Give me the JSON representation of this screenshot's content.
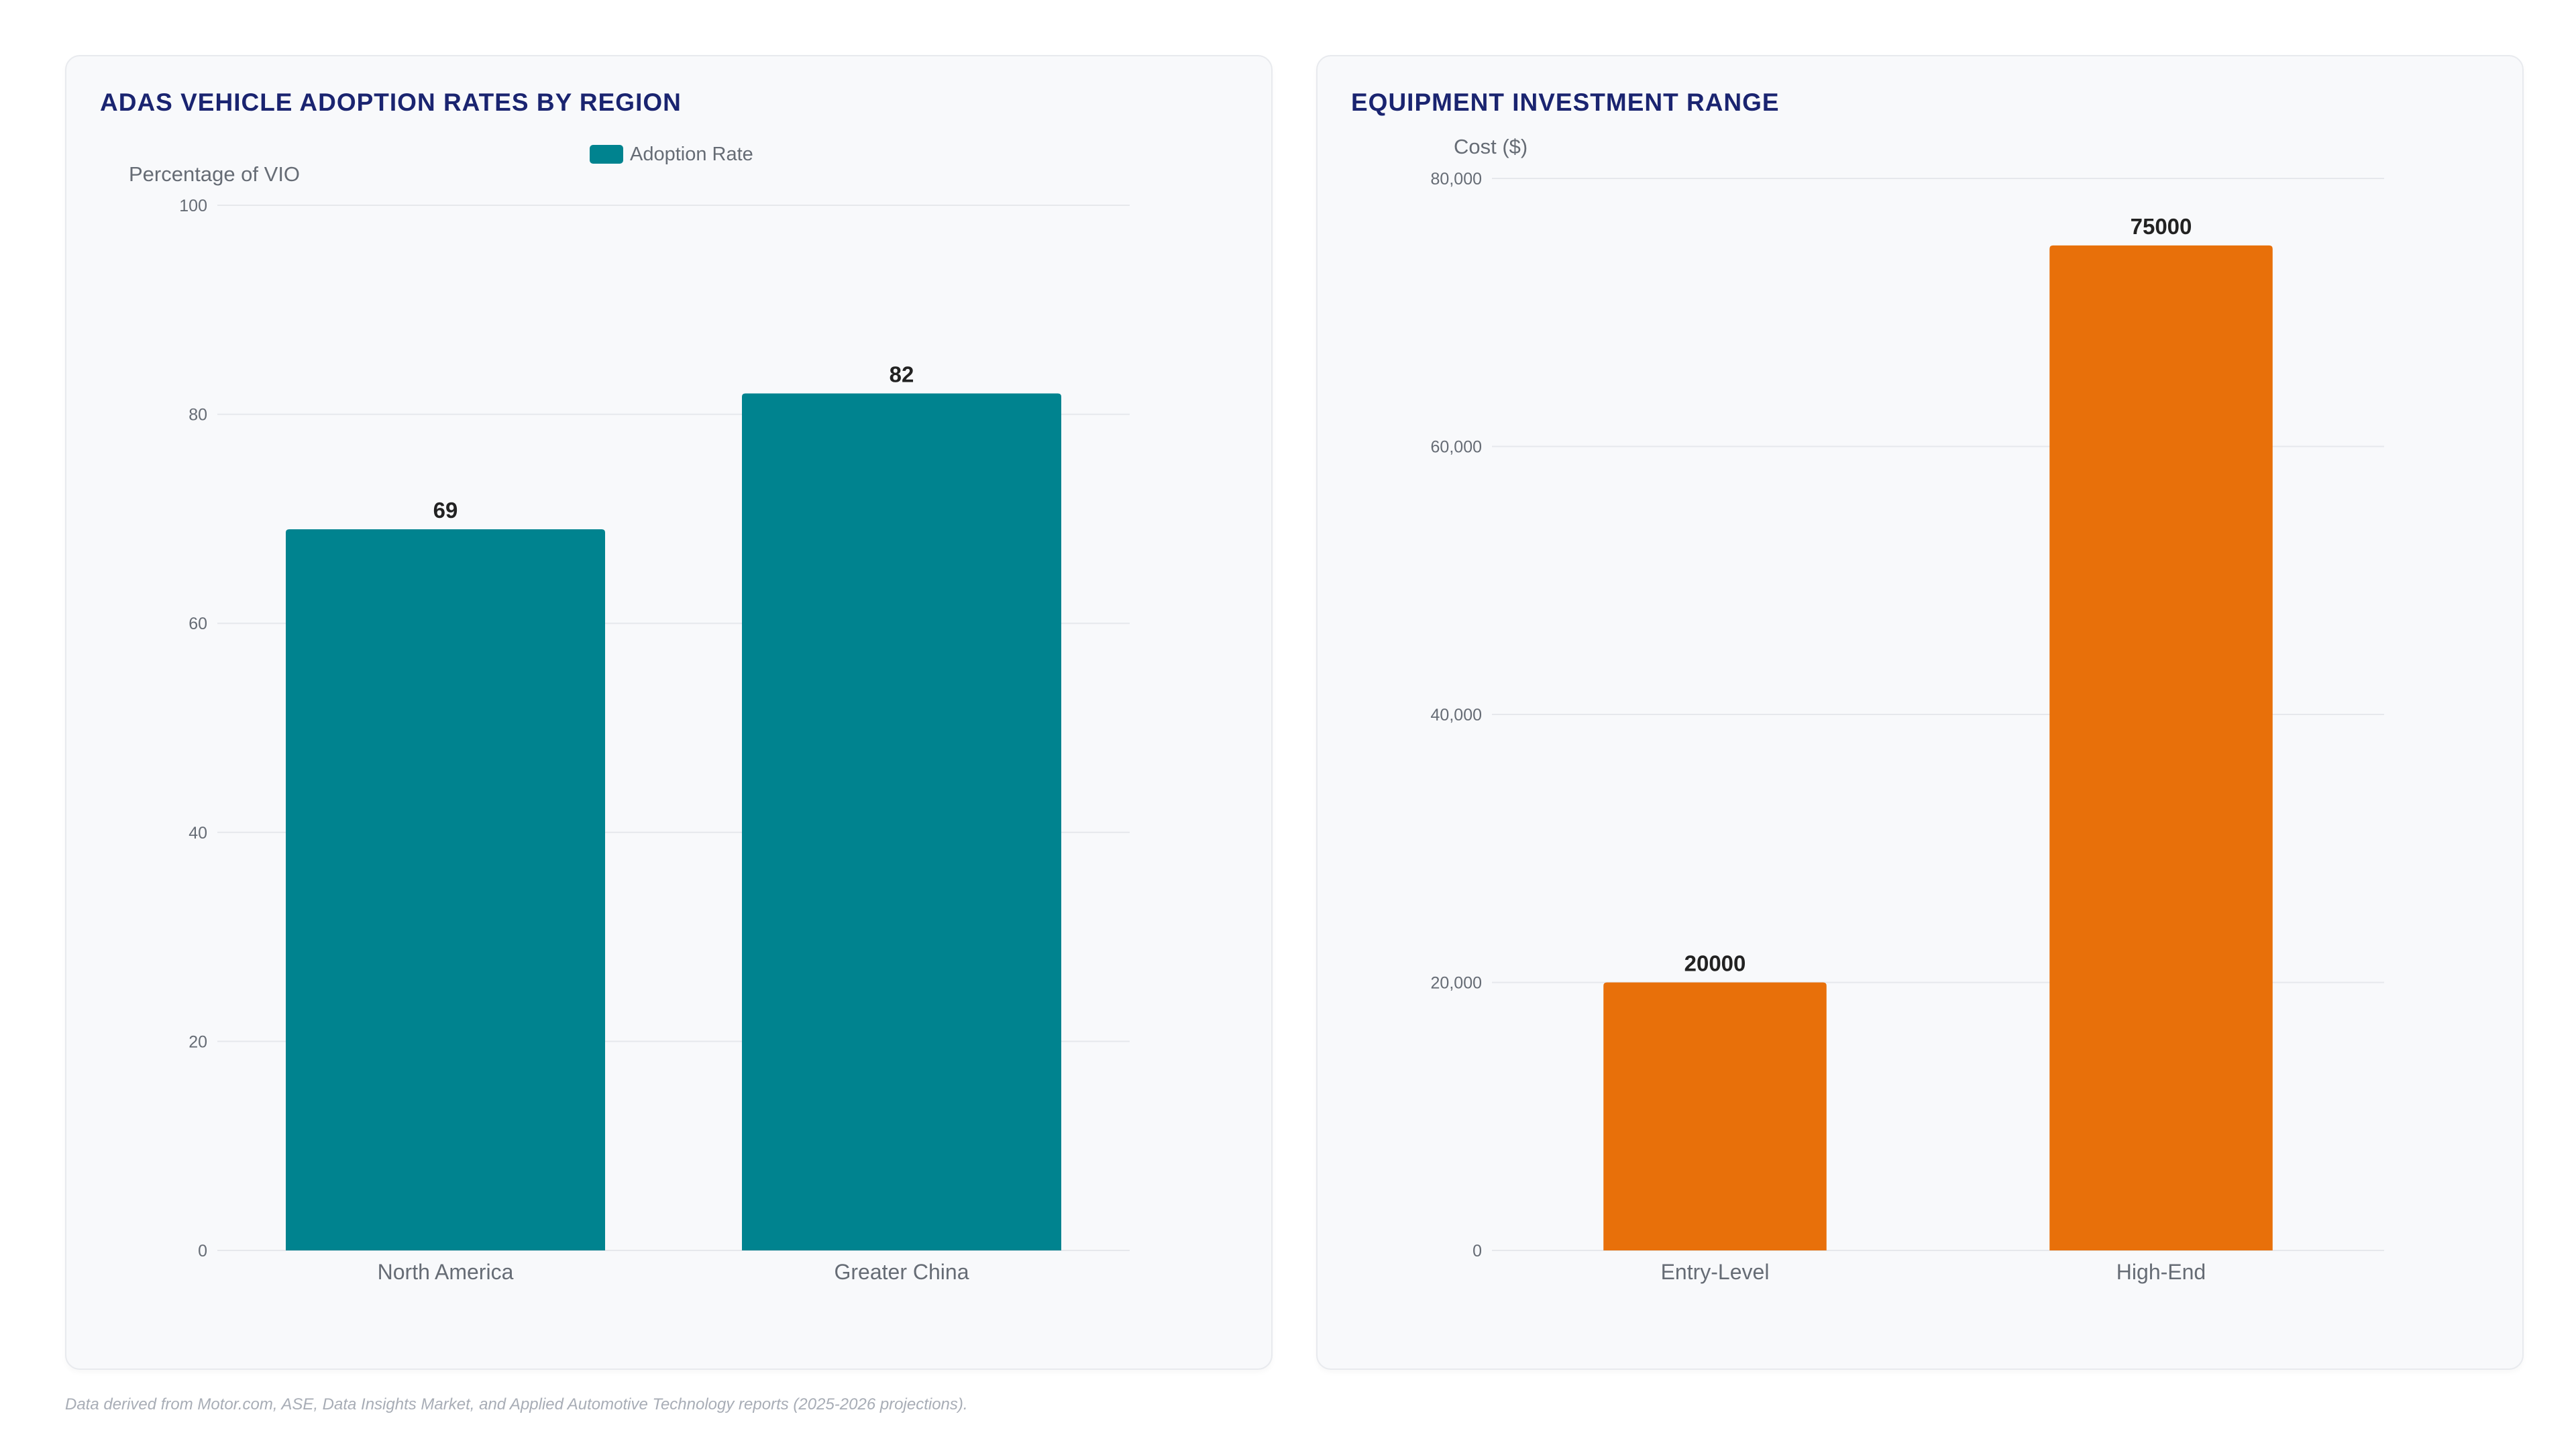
{
  "footnote": "Data derived from Motor.com, ASE, Data Insights Market, and Applied Automotive Technology reports (2025-2026 projections).",
  "colors": {
    "teal": "#00838f",
    "orange": "#e8700a",
    "title": "#1a2470",
    "axis_text": "#666c75",
    "grid": "#e6e8ec"
  },
  "chart_data": [
    {
      "type": "bar",
      "title": "ADAS VEHICLE ADOPTION RATES BY REGION",
      "categories": [
        "North America",
        "Greater China"
      ],
      "series": [
        {
          "name": "Adoption Rate",
          "values": [
            69,
            82
          ]
        }
      ],
      "ylabel": "Percentage of VIO",
      "xlabel": "",
      "ylim": [
        0,
        100
      ],
      "yticks": [
        "0",
        "20",
        "40",
        "60",
        "80",
        "100"
      ],
      "data_labels": [
        "69",
        "82"
      ],
      "legend": "top-center",
      "grid": true
    },
    {
      "type": "bar",
      "title": "EQUIPMENT INVESTMENT RANGE",
      "categories": [
        "Entry-Level",
        "High-End"
      ],
      "series": [
        {
          "values": [
            20000,
            75000
          ]
        }
      ],
      "ylabel": "Cost ($)",
      "xlabel": "",
      "ylim": [
        0,
        80000
      ],
      "yticks": [
        "0",
        "20,000",
        "40,000",
        "60,000",
        "80,000"
      ],
      "data_labels": [
        "20000",
        "75000"
      ],
      "legend": "none",
      "grid": true
    }
  ]
}
